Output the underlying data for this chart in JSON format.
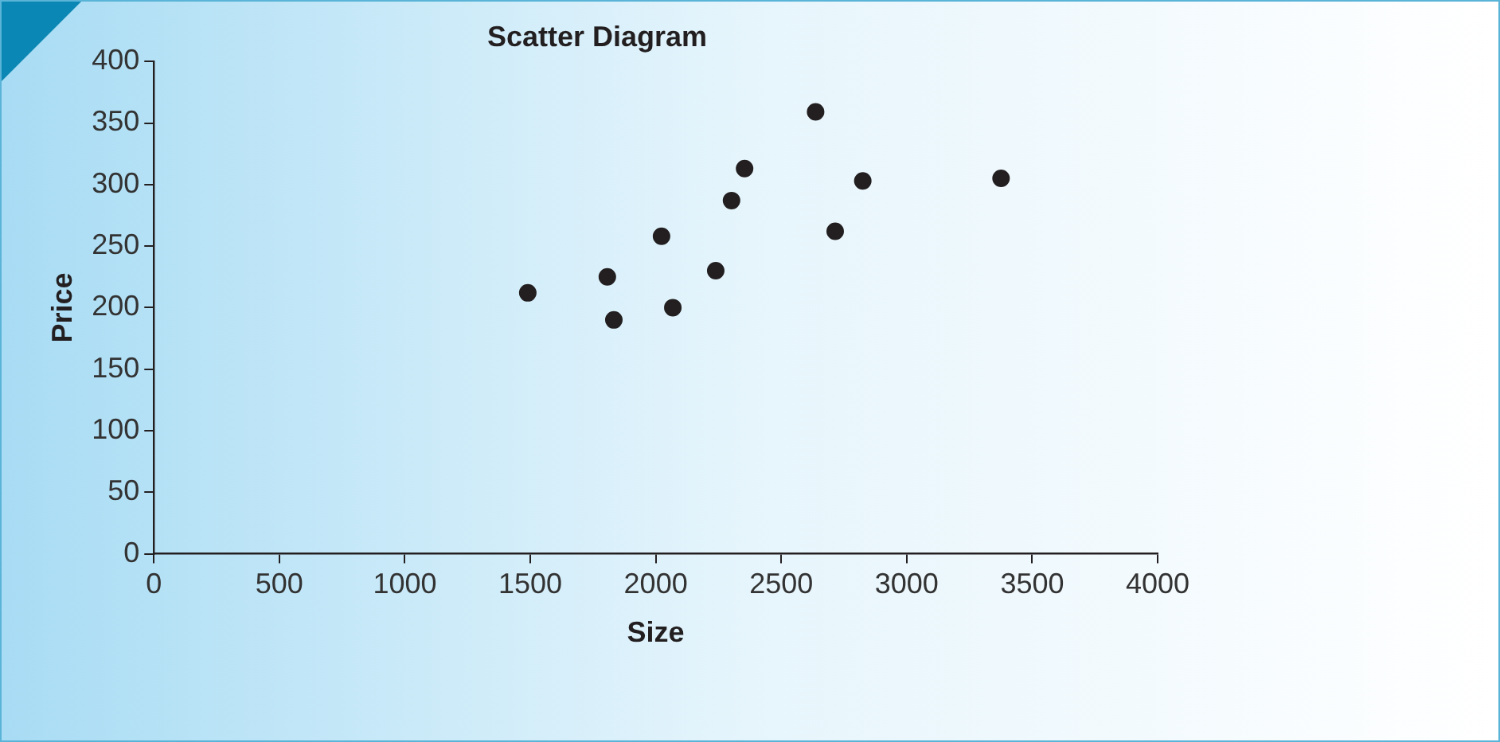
{
  "chart_data": {
    "type": "scatter",
    "title": "Scatter Diagram",
    "xlabel": "Size",
    "ylabel": "Price",
    "x": [
      1490,
      1807,
      1833,
      2023,
      2068,
      2239,
      2302,
      2354,
      2637,
      2715,
      2825,
      3376
    ],
    "values": [
      212,
      225,
      190,
      258,
      200,
      230,
      287,
      313,
      359,
      262,
      303,
      305
    ],
    "color": "#231f20",
    "marker": "circle",
    "grid": false,
    "legend": false,
    "xlim": [
      0,
      4000
    ],
    "xticks": [
      0,
      500,
      1000,
      1500,
      2000,
      2500,
      3000,
      3500,
      4000
    ],
    "ylim": [
      0,
      400
    ],
    "yticks": [
      0,
      50,
      100,
      150,
      200,
      250,
      300,
      350,
      400
    ]
  }
}
